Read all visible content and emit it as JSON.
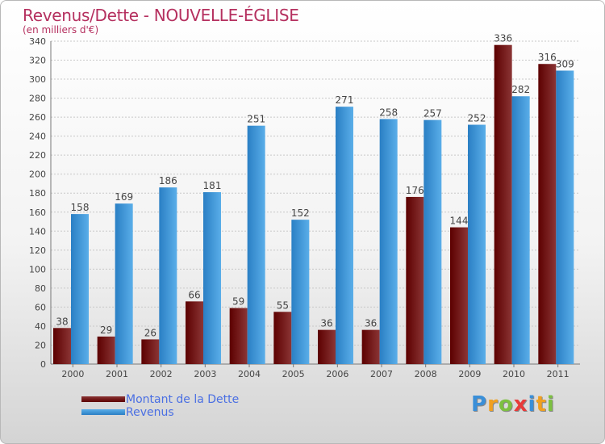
{
  "chart_data": {
    "type": "bar",
    "title": "Revenus/Dette - NOUVELLE-ÉGLISE",
    "subtitle": "(en milliers d'€)",
    "categories": [
      "2000",
      "2001",
      "2002",
      "2003",
      "2004",
      "2005",
      "2006",
      "2007",
      "2008",
      "2009",
      "2010",
      "2011"
    ],
    "series": [
      {
        "name": "Montant de la Dette",
        "values": [
          38,
          29,
          26,
          66,
          59,
          55,
          36,
          36,
          176,
          144,
          336,
          316
        ]
      },
      {
        "name": "Revenus",
        "values": [
          158,
          169,
          186,
          181,
          251,
          152,
          271,
          258,
          257,
          252,
          282,
          309
        ]
      }
    ],
    "ylim": [
      0,
      340
    ],
    "yticks": [
      0,
      20,
      40,
      60,
      80,
      100,
      120,
      140,
      160,
      180,
      200,
      220,
      240,
      260,
      280,
      300,
      320,
      340
    ],
    "grid": true,
    "legend_position": "bottom-left",
    "colors": {
      "dette_dark": "#5c0000",
      "dette_light": "#8b3535",
      "revenus_dark": "#2a7fc4",
      "revenus_light": "#5aaee9"
    }
  },
  "legend": {
    "items": [
      {
        "label": "Montant de la Dette",
        "color_dark": "#5c0000",
        "color_light": "#8b3535"
      },
      {
        "label": "Revenus",
        "color_dark": "#2a7fc4",
        "color_light": "#5aaee9"
      }
    ]
  },
  "logo": {
    "letters": [
      "P",
      "r",
      "o",
      "x",
      "i",
      "t",
      "i"
    ],
    "colors": [
      "#3a8fd8",
      "#f0a020",
      "#7cc040",
      "#e83a3a",
      "#3a8fd8",
      "#f0a020",
      "#7cc040"
    ]
  }
}
